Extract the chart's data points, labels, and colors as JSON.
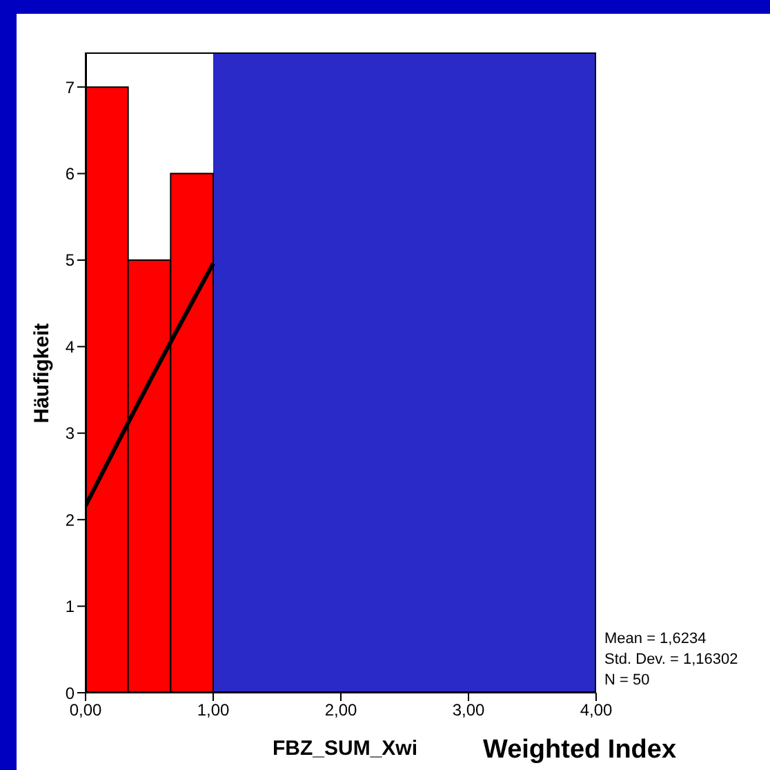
{
  "chart_data": {
    "type": "histogram",
    "xlabel": "FBZ_SUM_Xwi",
    "ylabel": "Häufigkeit",
    "bins": [
      0,
      0.3333,
      0.6667,
      1,
      1.3333,
      1.6667,
      2,
      2.3333,
      2.6667,
      3,
      3.3333,
      3.6667,
      4
    ],
    "values": [
      7,
      5,
      6,
      null,
      null,
      null,
      null,
      null,
      null,
      null,
      null,
      null
    ],
    "color": "#ff0000",
    "series": [
      {
        "type": "line",
        "color": "#000000",
        "x": [
          0,
          0.5,
          1
        ],
        "values": [
          2.16,
          3.59,
          4.96
        ]
      }
    ],
    "xlim": [
      0,
      4
    ],
    "ylim": [
      0,
      7.4
    ],
    "xticks": [
      {
        "value": 0,
        "label": "0,00"
      },
      {
        "value": 1,
        "label": "1,00"
      },
      {
        "value": 2,
        "label": "2,00"
      },
      {
        "value": 3,
        "label": "3,00"
      },
      {
        "value": 4,
        "label": "4,00"
      }
    ],
    "yticks": [
      0,
      1,
      2,
      3,
      4,
      5,
      6,
      7
    ],
    "grid": false,
    "bands": [
      {
        "axis": "x",
        "from": 1,
        "to": 4,
        "color": "#2a2ac8"
      }
    ],
    "annotations": [
      "Mean = 1,6234",
      "Std. Dev. = 1,16302",
      "N = 50",
      "Weighted Index"
    ]
  }
}
